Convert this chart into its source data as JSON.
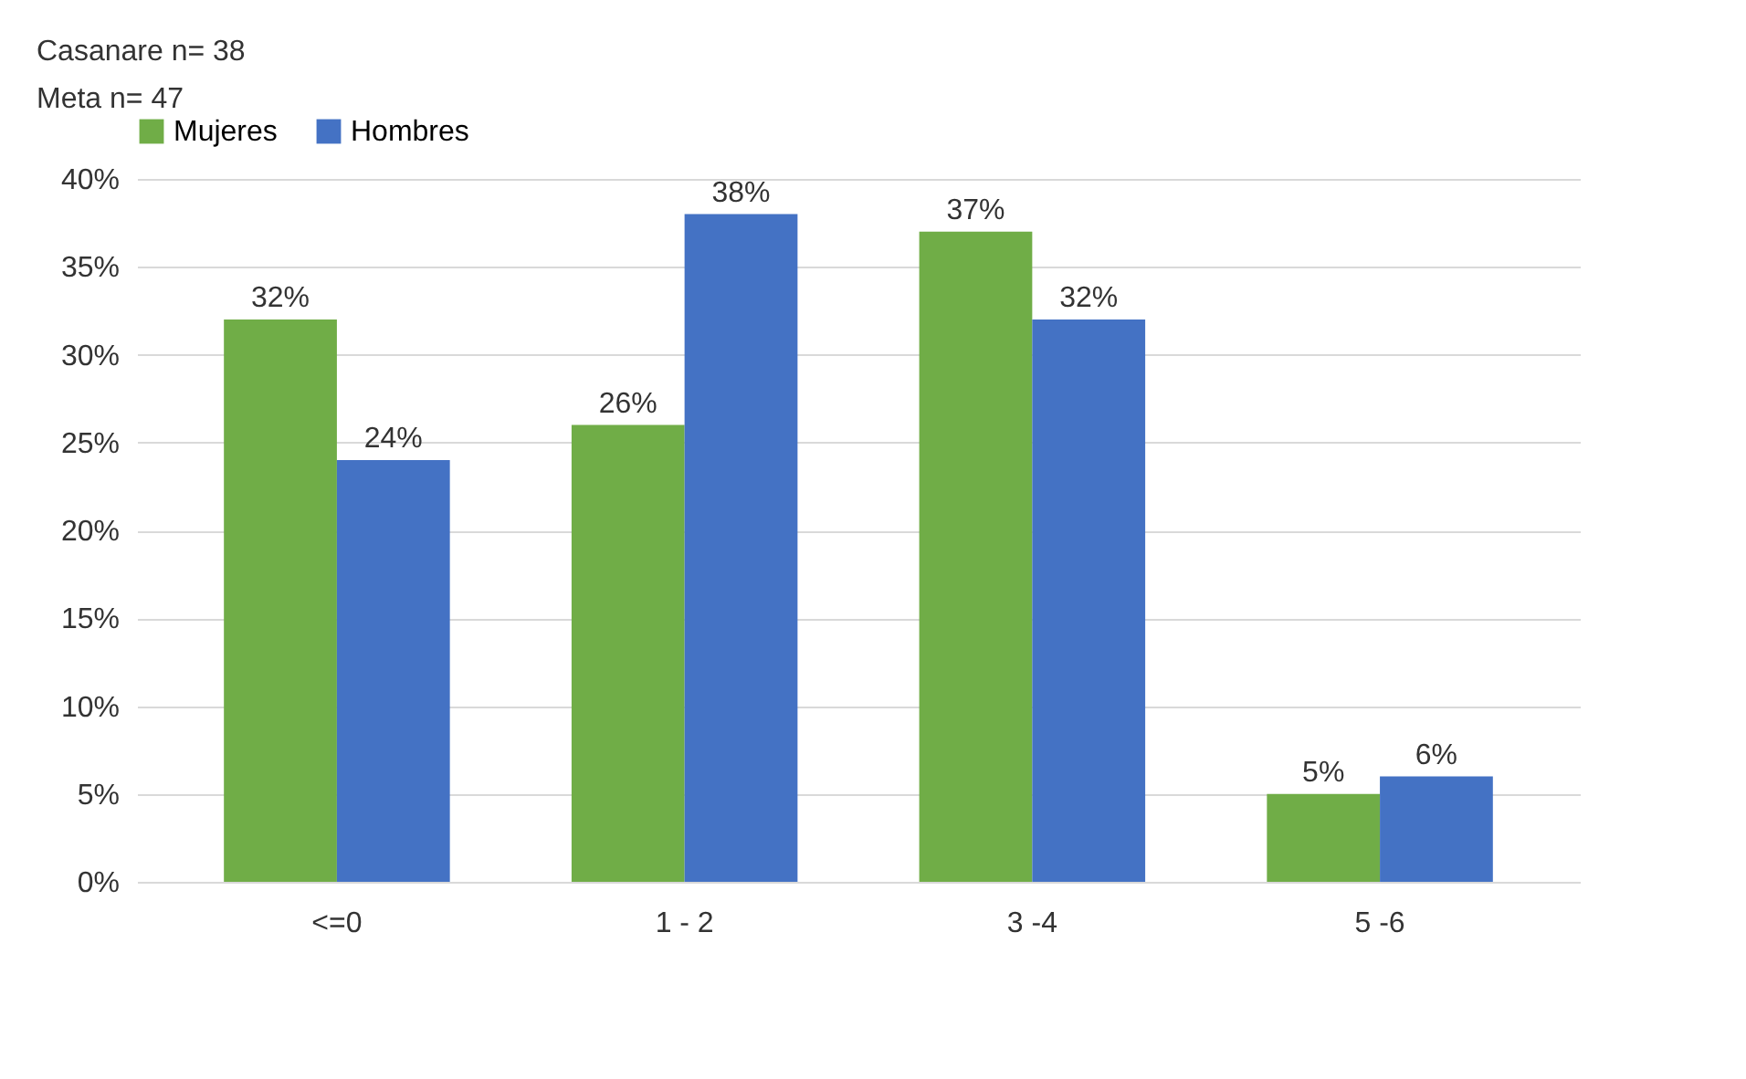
{
  "chart_data": {
    "type": "bar",
    "categories": [
      "<=0",
      "1 - 2",
      "3 -4",
      "5 -6"
    ],
    "series": [
      {
        "name": "Mujeres",
        "color": "#70ad47",
        "values": [
          32,
          26,
          37,
          5
        ],
        "value_labels": [
          "32%",
          "26%",
          "37%",
          "5%"
        ]
      },
      {
        "name": "Hombres",
        "color": "#4472c4",
        "values": [
          24,
          38,
          32,
          6
        ],
        "value_labels": [
          "24%",
          "38%",
          "32%",
          "6%"
        ]
      }
    ],
    "ylim": [
      0,
      40
    ],
    "yticks": [
      {
        "value": 0,
        "label": "0%"
      },
      {
        "value": 5,
        "label": "5%"
      },
      {
        "value": 10,
        "label": "10%"
      },
      {
        "value": 15,
        "label": "15%"
      },
      {
        "value": 20,
        "label": "20%"
      },
      {
        "value": 25,
        "label": "25%"
      },
      {
        "value": 30,
        "label": "30%"
      },
      {
        "value": 35,
        "label": "35%"
      },
      {
        "value": 40,
        "label": "40%"
      }
    ],
    "grid": "y",
    "legend": "top",
    "annotations": [
      "Casanare n= 38",
      "Meta n= 47"
    ]
  }
}
